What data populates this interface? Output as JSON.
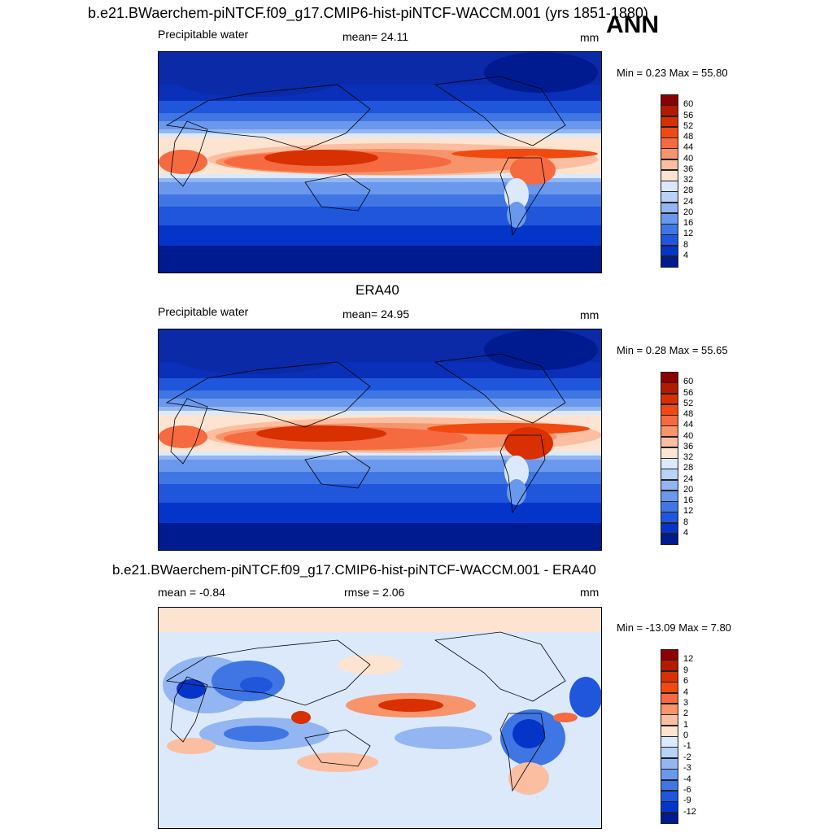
{
  "header": {
    "title": "b.e21.BWaerchem-piNTCF.f09_g17.CMIP6-hist-piNTCF-WACCM.001 (yrs 1851-1880)",
    "season": "ANN"
  },
  "panels": [
    {
      "id": "model",
      "variable": "Precipitable water",
      "stat": "mean=  24.11",
      "units": "mm",
      "minmax": "Min =   0.23 Max =  55.80",
      "colorbar": {
        "labels": [
          "60",
          "56",
          "52",
          "48",
          "44",
          "40",
          "36",
          "32",
          "28",
          "24",
          "20",
          "16",
          "12",
          "8",
          "4"
        ],
        "colors": [
          "#8b0000",
          "#b31a00",
          "#d83000",
          "#f04a10",
          "#f56a40",
          "#f8946c",
          "#fbbea0",
          "#fde4d0",
          "#dbe9fb",
          "#b9d2f8",
          "#93b6f2",
          "#6a98ec",
          "#4076e4",
          "#1f56dc",
          "#0535c8",
          "#001a90"
        ]
      }
    },
    {
      "id": "obs",
      "heading": "ERA40",
      "variable": "Precipitable water",
      "stat": "mean=  24.95",
      "units": "mm",
      "minmax": "Min =   0.28 Max =  55.65",
      "colorbar": {
        "labels": [
          "60",
          "56",
          "52",
          "48",
          "44",
          "40",
          "36",
          "32",
          "28",
          "24",
          "20",
          "16",
          "12",
          "8",
          "4"
        ],
        "colors": [
          "#8b0000",
          "#b31a00",
          "#d83000",
          "#f04a10",
          "#f56a40",
          "#f8946c",
          "#fbbea0",
          "#fde4d0",
          "#dbe9fb",
          "#b9d2f8",
          "#93b6f2",
          "#6a98ec",
          "#4076e4",
          "#1f56dc",
          "#0535c8",
          "#001a90"
        ]
      }
    },
    {
      "id": "diff",
      "heading": "b.e21.BWaerchem-piNTCF.f09_g17.CMIP6-hist-piNTCF-WACCM.001 - ERA40",
      "stat_left": "mean =  -0.84",
      "stat_mid": "rmse =   2.06",
      "units": "mm",
      "minmax": "Min = -13.09 Max =   7.80",
      "colorbar": {
        "labels": [
          "12",
          "9",
          "6",
          "4",
          "3",
          "2",
          "1",
          "0",
          "-1",
          "-2",
          "-3",
          "-4",
          "-6",
          "-9",
          "-12"
        ],
        "colors": [
          "#8b0000",
          "#b31a00",
          "#d83000",
          "#f04a10",
          "#f56a40",
          "#f8946c",
          "#fbbea0",
          "#fde4d0",
          "#dbe9fb",
          "#b9d2f8",
          "#93b6f2",
          "#6a98ec",
          "#4076e4",
          "#1f56dc",
          "#0535c8",
          "#001a90"
        ]
      }
    }
  ]
}
